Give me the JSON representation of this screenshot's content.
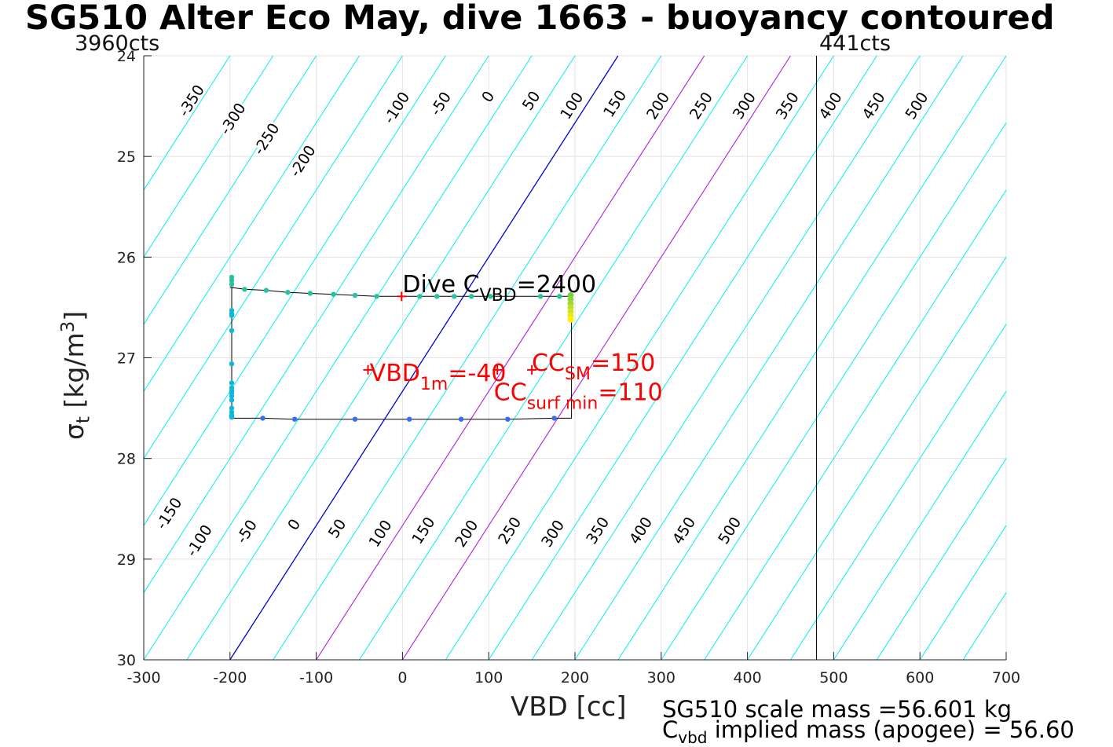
{
  "title": "SG510 Alter Eco May, dive 1663 - buoyancy contoured",
  "corner_left": "3960cts",
  "corner_right": "441cts",
  "footer": {
    "scale_mass": "SG510 scale mass =56.601 kg",
    "implied_prefix": "C",
    "implied_sub": "vbd",
    "implied_rest": " implied mass (apogee) = 56.60"
  },
  "colors": {
    "contour": "#00f0f0",
    "zero_line": "#0000cc",
    "magenta_line": "#b020e0",
    "red_annot": "#ff0000",
    "track_line": "#000000"
  },
  "chart_data": {
    "type": "scatter",
    "title": "SG510 Alter Eco May, dive 1663 - buoyancy contoured",
    "xlabel": "VBD [cc]",
    "ylabel": "σt [kg/m3]",
    "ylabel_parts": {
      "sym": "σ",
      "sub": "t",
      "open": " [kg/m",
      "sup": "3",
      "close": "]"
    },
    "xlim": [
      -300,
      700
    ],
    "ylim": [
      24,
      30
    ],
    "y_reversed": true,
    "grid": true,
    "xticks": [
      -300,
      -200,
      -100,
      0,
      100,
      200,
      300,
      400,
      500,
      600,
      700
    ],
    "xtick_labels": [
      "-300",
      "-200",
      "-100",
      "0",
      "100",
      "200",
      "300",
      "400",
      "500",
      "600",
      "700"
    ],
    "yticks": [
      24,
      25,
      26,
      27,
      28,
      29,
      30
    ],
    "ytick_labels": [
      "24",
      "25",
      "26",
      "27",
      "28",
      "29",
      "30"
    ],
    "contour_slope_cc_per_sigma": 75,
    "contour_levels": [
      -350,
      -300,
      -250,
      -200,
      -150,
      -100,
      -50,
      0,
      50,
      100,
      150,
      200,
      250,
      300,
      350,
      400,
      450,
      500
    ],
    "contour_level_labels": [
      "-350",
      "-300",
      "-250",
      "-200",
      "-150",
      "-100",
      "-50",
      "0",
      "50",
      "100",
      "150",
      "200",
      "250",
      "300",
      "350",
      "400",
      "450",
      "500"
    ],
    "zero_contour_level": -200,
    "magenta_levels": [
      -100,
      0
    ],
    "top_contour_labels": [
      {
        "text": "-350",
        "x": -244,
        "y": 24.45
      },
      {
        "text": "-300",
        "x": -196,
        "y": 24.63
      },
      {
        "text": "-250",
        "x": -157,
        "y": 24.83
      },
      {
        "text": "-200",
        "x": -115,
        "y": 25.05
      },
      {
        "text": "-100",
        "x": -6,
        "y": 24.52
      },
      {
        "text": "-50",
        "x": 45,
        "y": 24.48
      },
      {
        "text": "0",
        "x": 100,
        "y": 24.41
      },
      {
        "text": "50",
        "x": 150,
        "y": 24.45
      },
      {
        "text": "100",
        "x": 197,
        "y": 24.5
      },
      {
        "text": "150",
        "x": 247,
        "y": 24.48
      },
      {
        "text": "200",
        "x": 297,
        "y": 24.5
      },
      {
        "text": "250",
        "x": 347,
        "y": 24.5
      },
      {
        "text": "300",
        "x": 397,
        "y": 24.5
      },
      {
        "text": "350",
        "x": 447,
        "y": 24.5
      },
      {
        "text": "400",
        "x": 497,
        "y": 24.5
      },
      {
        "text": "450",
        "x": 547,
        "y": 24.5
      },
      {
        "text": "500",
        "x": 597,
        "y": 24.5
      }
    ],
    "bottom_contour_labels": [
      {
        "text": "-150",
        "x": -270,
        "y": 28.55
      },
      {
        "text": "-100",
        "x": -235,
        "y": 28.82
      },
      {
        "text": "-50",
        "x": -180,
        "y": 28.73
      },
      {
        "text": "0",
        "x": -125,
        "y": 28.66
      },
      {
        "text": "50",
        "x": -75,
        "y": 28.7
      },
      {
        "text": "100",
        "x": -25,
        "y": 28.75
      },
      {
        "text": "150",
        "x": 25,
        "y": 28.72
      },
      {
        "text": "200",
        "x": 75,
        "y": 28.75
      },
      {
        "text": "250",
        "x": 125,
        "y": 28.72
      },
      {
        "text": "300",
        "x": 175,
        "y": 28.75
      },
      {
        "text": "350",
        "x": 227,
        "y": 28.72
      },
      {
        "text": "400",
        "x": 277,
        "y": 28.72
      },
      {
        "text": "450",
        "x": 327,
        "y": 28.72
      },
      {
        "text": "500",
        "x": 380,
        "y": 28.72
      }
    ],
    "vertical_line_x": 480,
    "track": [
      [
        -200,
        26.3
      ],
      [
        -183,
        26.32
      ],
      [
        -158,
        26.33
      ],
      [
        -133,
        26.35
      ],
      [
        -107,
        26.36
      ],
      [
        -80,
        26.37
      ],
      [
        -55,
        26.38
      ],
      [
        -30,
        26.39
      ],
      [
        -5,
        26.39
      ],
      [
        20,
        26.39
      ],
      [
        40,
        26.39
      ],
      [
        60,
        26.39
      ],
      [
        100,
        26.39
      ],
      [
        160,
        26.39
      ],
      [
        195,
        26.39
      ],
      [
        196,
        26.4
      ],
      [
        196,
        27.6
      ],
      [
        176,
        27.6
      ],
      [
        122,
        27.61
      ],
      [
        68,
        27.61
      ],
      [
        8,
        27.61
      ],
      [
        -55,
        27.61
      ],
      [
        -125,
        27.61
      ],
      [
        -162,
        27.6
      ],
      [
        -197,
        27.6
      ],
      [
        -198,
        27.6
      ],
      [
        -198,
        26.3
      ]
    ],
    "points_teal": [
      [
        -198,
        26.2
      ],
      [
        -198,
        26.23
      ],
      [
        -198,
        26.27
      ],
      [
        -183,
        26.32
      ],
      [
        -158,
        26.33
      ],
      [
        -133,
        26.35
      ],
      [
        -107,
        26.36
      ],
      [
        -80,
        26.37
      ],
      [
        -55,
        26.38
      ],
      [
        -30,
        26.39
      ],
      [
        20,
        26.39
      ],
      [
        40,
        26.39
      ],
      [
        60,
        26.39
      ],
      [
        80,
        26.39
      ],
      [
        102,
        26.39
      ],
      [
        160,
        26.39
      ],
      [
        182,
        26.39
      ]
    ],
    "points_cyan": [
      [
        -198,
        26.53
      ],
      [
        -198,
        26.56
      ],
      [
        -198,
        26.58
      ],
      [
        -198,
        26.73
      ],
      [
        -198,
        27.06
      ],
      [
        -198,
        27.25
      ],
      [
        -198,
        27.3
      ],
      [
        -198,
        27.33
      ],
      [
        -198,
        27.35
      ],
      [
        -198,
        27.38
      ],
      [
        -198,
        27.42
      ],
      [
        -198,
        27.5
      ],
      [
        -198,
        27.54
      ],
      [
        -198,
        27.57
      ],
      [
        -198,
        27.59
      ]
    ],
    "points_blue": [
      [
        -162,
        27.6
      ],
      [
        -125,
        27.61
      ],
      [
        -55,
        27.61
      ],
      [
        8,
        27.61
      ],
      [
        68,
        27.61
      ],
      [
        122,
        27.61
      ],
      [
        176,
        27.6
      ]
    ],
    "surface_points": [
      [
        195,
        26.38
      ],
      [
        195,
        26.42
      ],
      [
        195,
        26.46
      ],
      [
        195,
        26.5
      ],
      [
        195,
        26.54
      ],
      [
        195,
        26.58
      ],
      [
        195,
        26.62
      ]
    ],
    "red_markers": [
      {
        "x": -1,
        "y": 26.39
      },
      {
        "x": -40,
        "y": 27.12
      },
      {
        "x": 110,
        "y": 27.12
      },
      {
        "x": 150,
        "y": 27.12
      }
    ],
    "annotations": {
      "dive": {
        "pre": "Dive C",
        "sub": "VBD",
        "post": "=2400",
        "x": 0,
        "y": 26.28,
        "color": "#000000"
      },
      "vbd1m": {
        "pre": "VBD",
        "sub": "1m",
        "post": "=-40",
        "x": -38,
        "y": 27.16,
        "color": "#ff0000"
      },
      "ccsm": {
        "pre": "CC",
        "sub": "SM",
        "post": "=150",
        "x": 150,
        "y": 27.06,
        "color": "#ff0000"
      },
      "ccsurf": {
        "pre": "CC",
        "sub": "surf min",
        "post": "=110",
        "x": 106,
        "y": 27.35,
        "color": "#ff0000"
      }
    }
  }
}
